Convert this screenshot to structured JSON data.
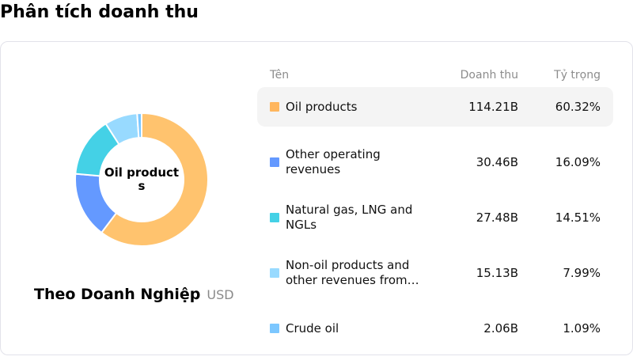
{
  "page": {
    "title": "Phân tích doanh thu"
  },
  "donut": {
    "center_label": "Oil products",
    "group_title": "Theo Doanh Nghiệp",
    "unit": "USD"
  },
  "table": {
    "headers": {
      "name": "Tên",
      "revenue": "Doanh thu",
      "share": "Tỷ trọng"
    },
    "rows": [
      {
        "name": "Oil products",
        "revenue": "114.21B",
        "share": "60.32%",
        "color": "#FFC36E",
        "swatch": "#FFB65E"
      },
      {
        "name": "Other operating revenues",
        "revenue": "30.46B",
        "share": "16.09%",
        "color": "#6499FF",
        "swatch": "#6499FF"
      },
      {
        "name": "Natural gas, LNG and NGLs",
        "revenue": "27.48B",
        "share": "14.51%",
        "color": "#44D1E6",
        "swatch": "#44D1E6"
      },
      {
        "name": "Non-oil products and other revenues from…",
        "revenue": "15.13B",
        "share": "7.99%",
        "color": "#98DAFF",
        "swatch": "#98DAFF"
      },
      {
        "name": "Crude oil",
        "revenue": "2.06B",
        "share": "1.09%",
        "color": "#7CC7FF",
        "swatch": "#7CC7FF"
      }
    ]
  },
  "chart_data": {
    "type": "pie",
    "variant": "donut",
    "title": "Phân tích doanh thu",
    "subtitle": "Theo Doanh Nghiệp (USD)",
    "center_label": "Oil products",
    "categories": [
      "Oil products",
      "Other operating revenues",
      "Natural gas, LNG and NGLs",
      "Non-oil products and other revenues from…",
      "Crude oil"
    ],
    "values": [
      114.21,
      30.46,
      27.48,
      15.13,
      2.06
    ],
    "value_unit": "B USD",
    "shares_pct": [
      60.32,
      16.09,
      14.51,
      7.99,
      1.09
    ],
    "colors": [
      "#FFC36E",
      "#6499FF",
      "#44D1E6",
      "#98DAFF",
      "#7CC7FF"
    ],
    "legend_position": "right (table)"
  }
}
